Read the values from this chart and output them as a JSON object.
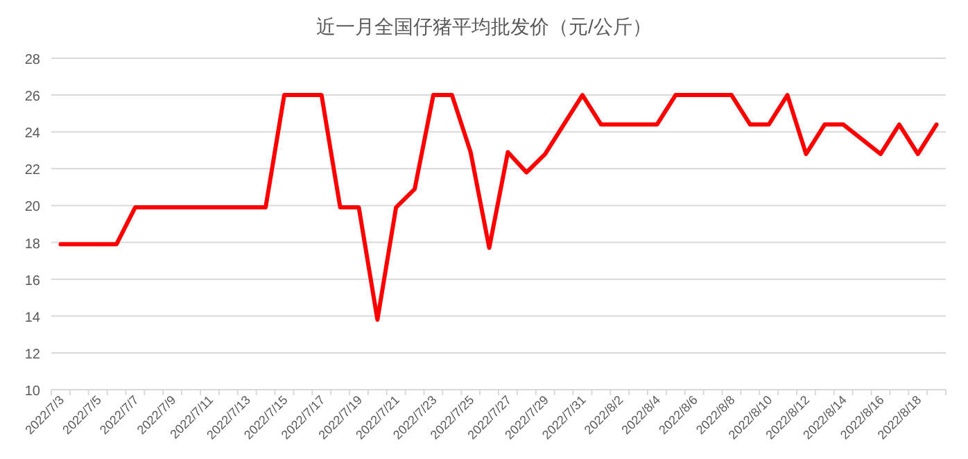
{
  "chart_data": {
    "type": "line",
    "title": "近一月全国仔猪平均批发价（元/公斤）",
    "categories": [
      "2022/7/3",
      null,
      "2022/7/5",
      null,
      "2022/7/7",
      null,
      "2022/7/9",
      null,
      "2022/7/11",
      null,
      "2022/7/13",
      null,
      "2022/7/15",
      null,
      "2022/7/17",
      null,
      "2022/7/19",
      null,
      "2022/7/21",
      null,
      "2022/7/23",
      null,
      "2022/7/25",
      null,
      "2022/7/27",
      null,
      "2022/7/29",
      null,
      "2022/7/31",
      null,
      "2022/8/2",
      null,
      "2022/8/4",
      null,
      "2022/8/6",
      null,
      "2022/8/8",
      null,
      "2022/8/10",
      null,
      "2022/8/12",
      null,
      "2022/8/14",
      null,
      "2022/8/16",
      null,
      "2022/8/18",
      null
    ],
    "series": [
      {
        "color": "#ff0000",
        "values": [
          17.9,
          17.9,
          17.9,
          17.9,
          19.9,
          19.9,
          19.9,
          19.9,
          19.9,
          19.9,
          19.9,
          19.9,
          26,
          26,
          26,
          19.9,
          19.9,
          13.8,
          19.9,
          20.9,
          26,
          26,
          22.9,
          17.7,
          22.9,
          21.8,
          22.8,
          24.4,
          26,
          24.4,
          24.4,
          24.4,
          24.4,
          26,
          26,
          26,
          26,
          24.4,
          24.4,
          26,
          22.8,
          24.4,
          24.4,
          23.6,
          22.8,
          24.4,
          22.8,
          24.4
        ]
      }
    ],
    "ylim": [
      10,
      28
    ],
    "yticks": [
      10,
      12,
      14,
      16,
      18,
      20,
      22,
      24,
      26,
      28
    ],
    "grid": "y",
    "marker": "none",
    "line_style": "solid"
  }
}
